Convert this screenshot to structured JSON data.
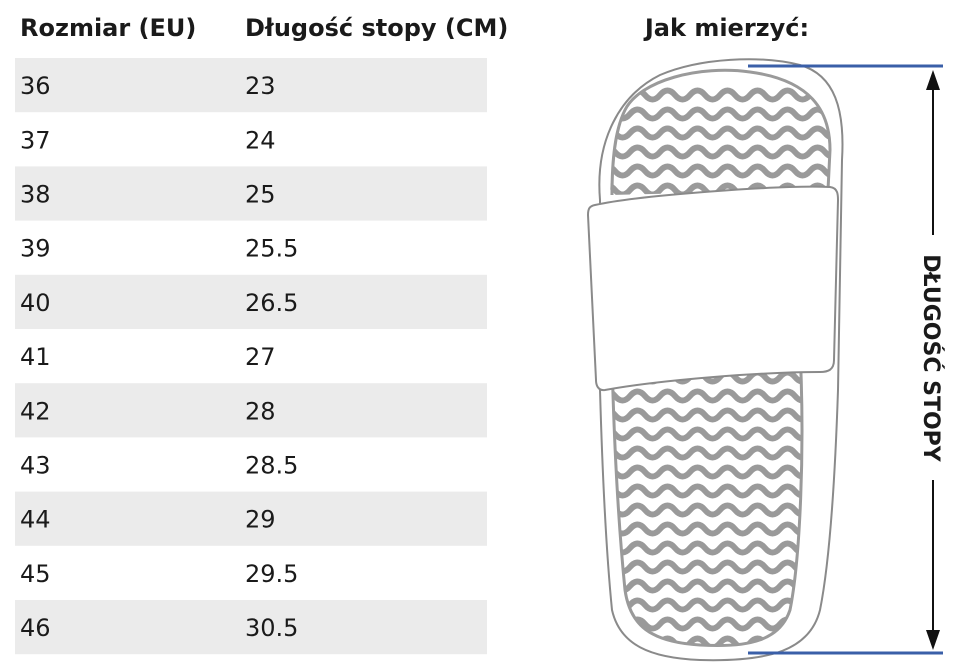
{
  "table": {
    "header": [
      "Rozmiar (EU)",
      "Długość stopy (CM)"
    ],
    "rows": [
      [
        "36",
        "23"
      ],
      [
        "37",
        "24"
      ],
      [
        "38",
        "25"
      ],
      [
        "39",
        "25.5"
      ],
      [
        "40",
        "26.5"
      ],
      [
        "41",
        "27"
      ],
      [
        "42",
        "28"
      ],
      [
        "43",
        "28.5"
      ],
      [
        "44",
        "29"
      ],
      [
        "45",
        "29.5"
      ],
      [
        "46",
        "30.5"
      ]
    ]
  },
  "illustration": {
    "title": "Jak mierzyć:",
    "measure_label": "DŁUGOŚĆ STOPY"
  }
}
